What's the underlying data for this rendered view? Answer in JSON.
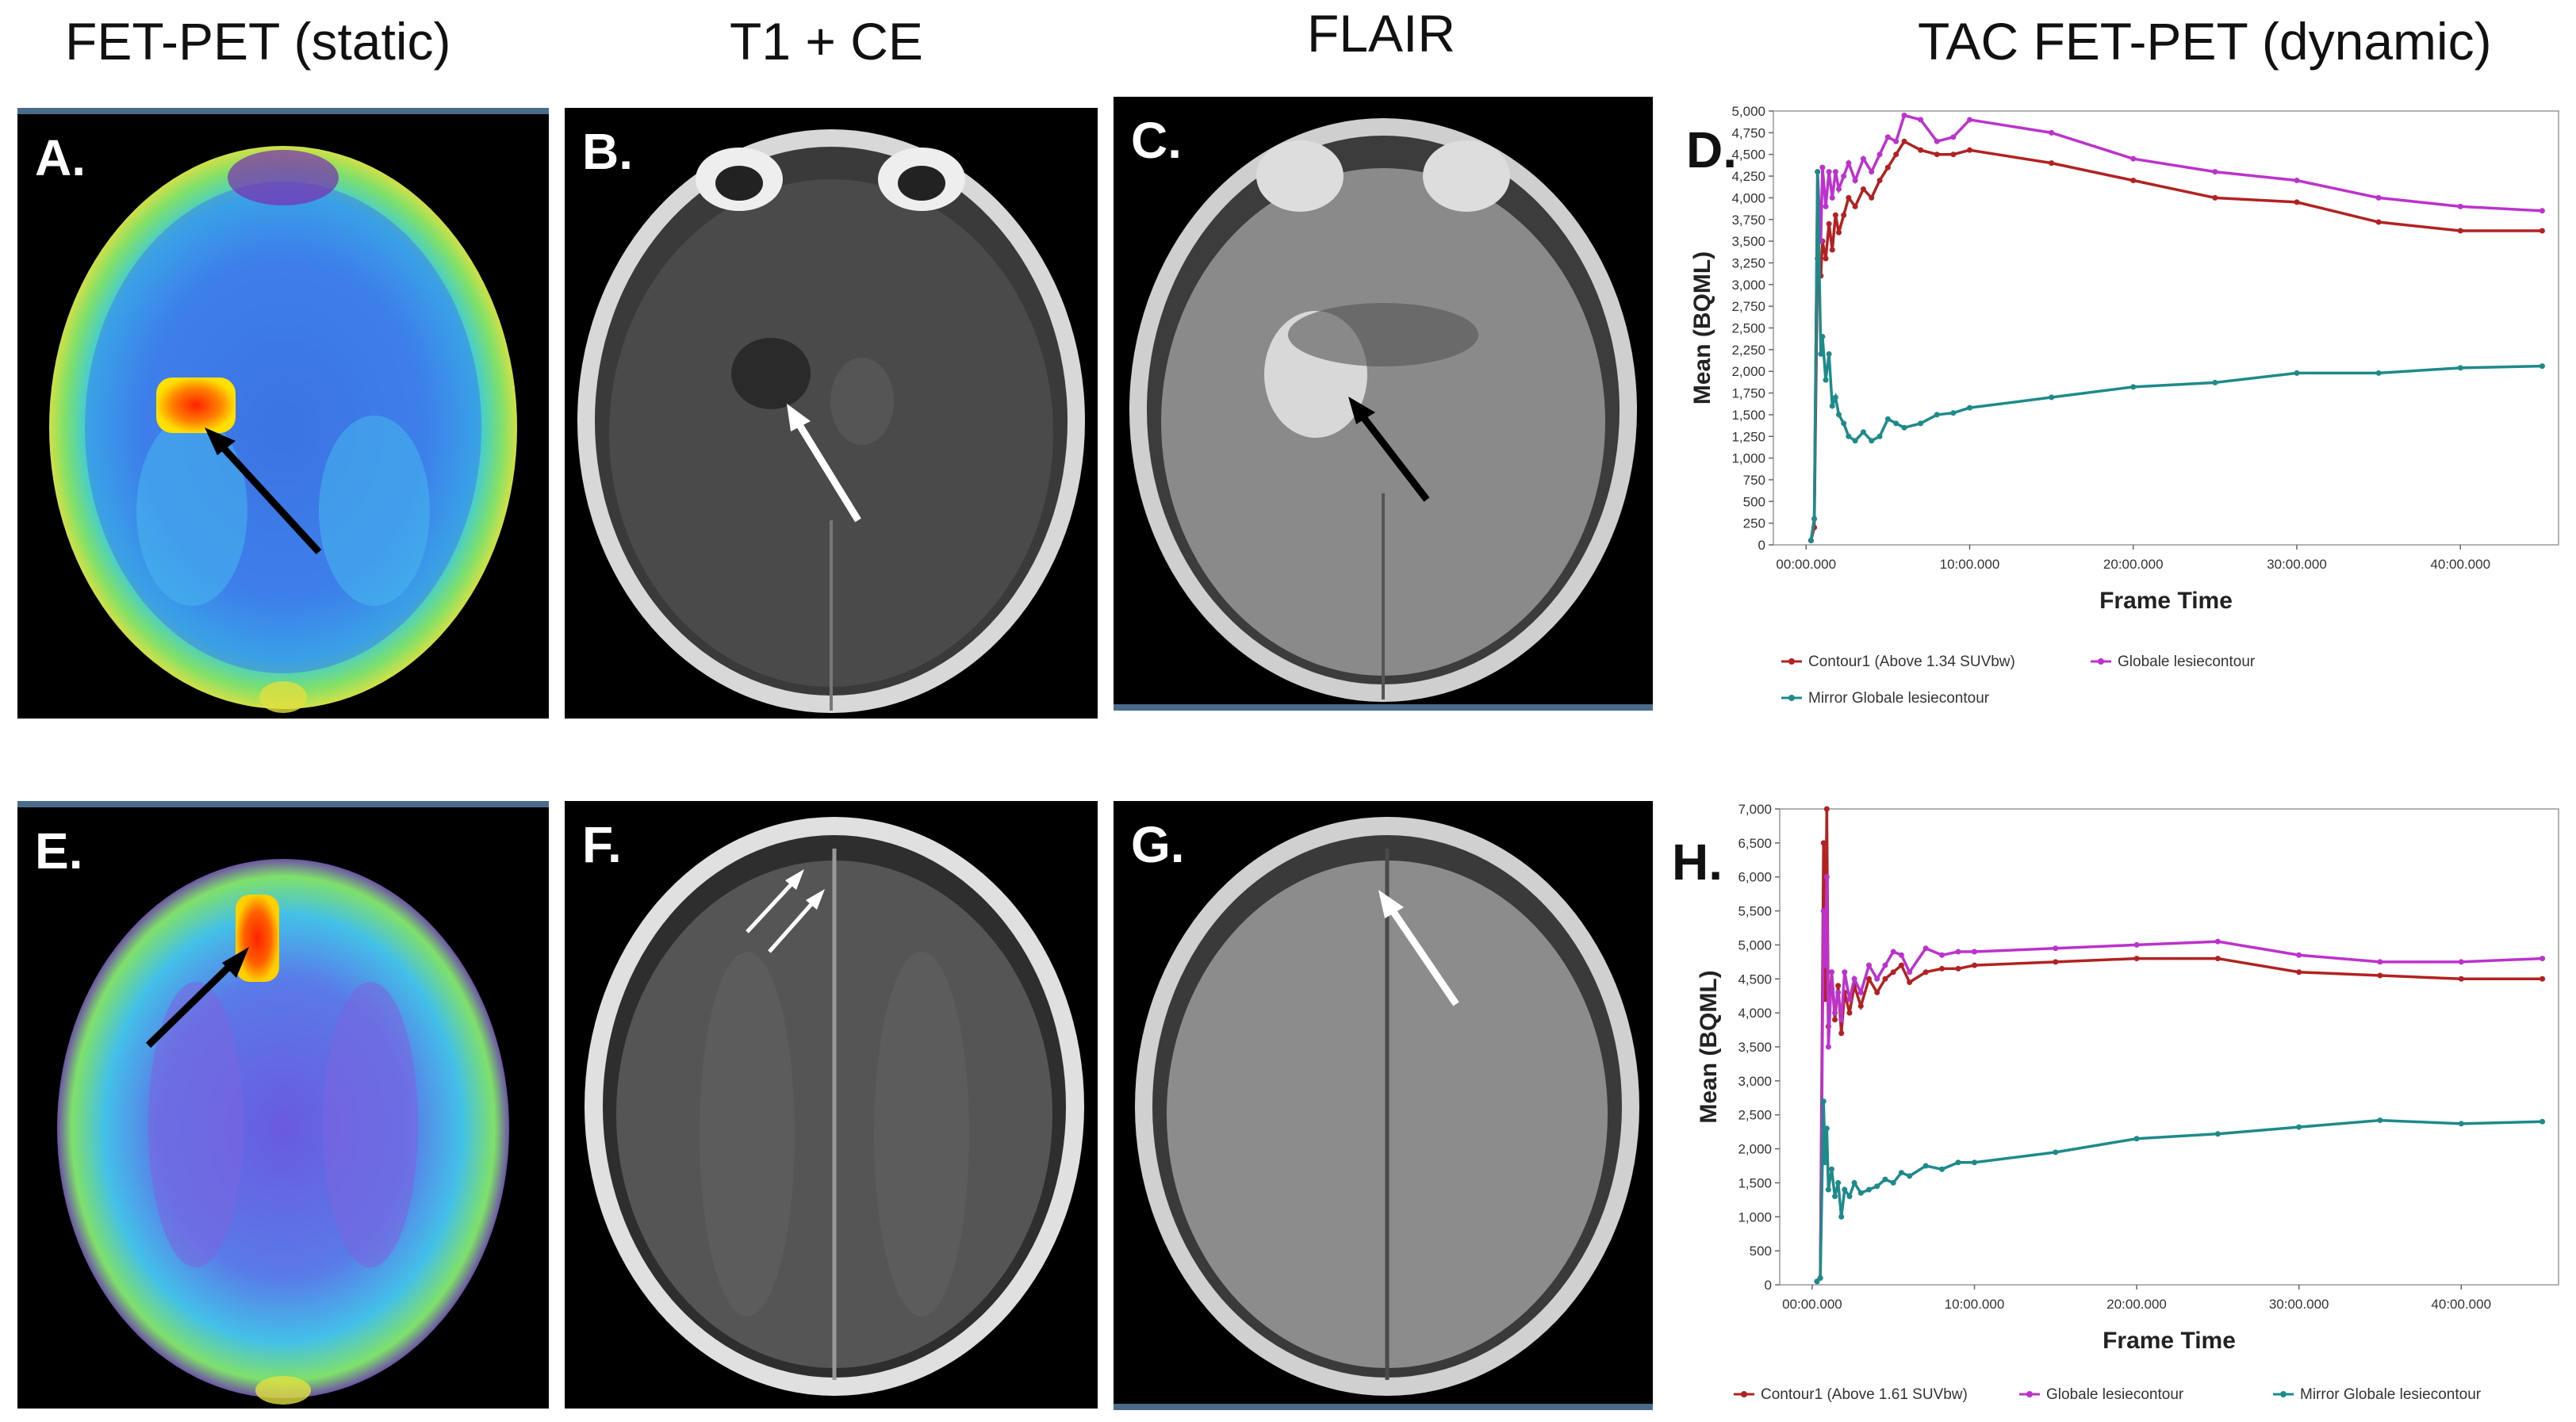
{
  "column_titles": {
    "fet_pet": "FET-PET (static)",
    "t1_ce": "T1 + CE",
    "flair": "FLAIR",
    "tac": "TAC FET-PET (dynamic)"
  },
  "panels": {
    "A": "A.",
    "B": "B.",
    "C": "C.",
    "D": "D.",
    "E": "E.",
    "F": "F.",
    "G": "G.",
    "H": "H."
  },
  "colors": {
    "contour1": "#b22222",
    "globale": "#bb33cc",
    "mirror": "#1f8a8a",
    "arrow_black": "#000000",
    "arrow_white": "#ffffff"
  },
  "chart_data": [
    {
      "type": "line",
      "panel": "D.",
      "xlabel": "Frame Time",
      "ylabel": "Mean (BQML)",
      "x_ticks": [
        "00:00.000",
        "10:00.000",
        "20:00.000",
        "30:00.000",
        "40:00.000"
      ],
      "y_ticks": [
        "0",
        "250",
        "500",
        "750",
        "1,000",
        "1,250",
        "1,500",
        "1,750",
        "2,000",
        "2,250",
        "2,500",
        "2,750",
        "3,000",
        "3,250",
        "3,500",
        "3,750",
        "4,000",
        "4,250",
        "4,500",
        "4,750",
        "5,000"
      ],
      "xlim": [
        -2,
        46
      ],
      "ylim": [
        0,
        5000
      ],
      "x_unit": "minutes",
      "series": [
        {
          "name": "Contour1 (Above 1.34 SUVbw)",
          "color": "#b22222",
          "x": [
            0.3,
            0.5,
            0.7,
            0.9,
            1.0,
            1.2,
            1.4,
            1.6,
            1.8,
            2.0,
            2.3,
            2.6,
            3.0,
            3.5,
            4.0,
            4.5,
            5.0,
            5.5,
            6.0,
            7.0,
            8.0,
            9.0,
            10.0,
            15.0,
            20.0,
            25.0,
            30.0,
            35.0,
            40.0,
            45.0
          ],
          "y": [
            50,
            200,
            3300,
            3100,
            3500,
            3300,
            3700,
            3400,
            3800,
            3600,
            3800,
            4000,
            3900,
            4100,
            4000,
            4200,
            4350,
            4500,
            4650,
            4550,
            4500,
            4500,
            4550,
            4400,
            4200,
            4000,
            3950,
            3720,
            3620,
            3620
          ]
        },
        {
          "name": "Globale lesiecontour",
          "color": "#bb33cc",
          "x": [
            0.3,
            0.5,
            0.7,
            0.9,
            1.0,
            1.2,
            1.4,
            1.6,
            1.8,
            2.0,
            2.3,
            2.6,
            3.0,
            3.5,
            4.0,
            4.5,
            5.0,
            5.5,
            6.0,
            7.0,
            8.0,
            9.0,
            10.0,
            15.0,
            20.0,
            25.0,
            30.0,
            35.0,
            40.0,
            45.0
          ],
          "y": [
            50,
            300,
            4300,
            3500,
            4350,
            3900,
            4300,
            4000,
            4300,
            4100,
            4250,
            4400,
            4200,
            4450,
            4300,
            4500,
            4700,
            4650,
            4950,
            4900,
            4650,
            4700,
            4900,
            4750,
            4450,
            4300,
            4200,
            4000,
            3900,
            3850
          ]
        },
        {
          "name": "Mirror Globale lesiecontour",
          "color": "#1f8a8a",
          "x": [
            0.3,
            0.5,
            0.7,
            0.9,
            1.0,
            1.2,
            1.4,
            1.6,
            1.8,
            2.0,
            2.3,
            2.6,
            3.0,
            3.5,
            4.0,
            4.5,
            5.0,
            5.5,
            6.0,
            7.0,
            8.0,
            9.0,
            10.0,
            15.0,
            20.0,
            25.0,
            30.0,
            35.0,
            40.0,
            45.0
          ],
          "y": [
            50,
            300,
            4300,
            2200,
            2400,
            1900,
            2200,
            1600,
            1700,
            1500,
            1400,
            1250,
            1200,
            1300,
            1200,
            1250,
            1450,
            1400,
            1350,
            1400,
            1500,
            1520,
            1580,
            1700,
            1820,
            1870,
            1980,
            1980,
            2040,
            2060
          ]
        }
      ]
    },
    {
      "type": "line",
      "panel": "H.",
      "xlabel": "Frame Time",
      "ylabel": "Mean (BQML)",
      "x_ticks": [
        "00:00.000",
        "10:00.000",
        "20:00.000",
        "30:00.000",
        "40:00.000"
      ],
      "y_ticks": [
        "0",
        "500",
        "1,000",
        "1,500",
        "2,000",
        "2,500",
        "3,000",
        "3,500",
        "4,000",
        "4,500",
        "5,000",
        "5,500",
        "6,000",
        "6,500",
        "7,000"
      ],
      "xlim": [
        -2,
        46
      ],
      "ylim": [
        0,
        7000
      ],
      "x_unit": "minutes",
      "series": [
        {
          "name": "Contour1 (Above 1.61 SUVbw)",
          "color": "#b22222",
          "x": [
            0.3,
            0.5,
            0.7,
            0.8,
            0.9,
            1.0,
            1.2,
            1.4,
            1.6,
            1.8,
            2.0,
            2.3,
            2.6,
            3.0,
            3.5,
            4.0,
            4.5,
            5.0,
            5.5,
            6.0,
            7.0,
            8.0,
            9.0,
            10.0,
            15.0,
            20.0,
            25.0,
            30.0,
            35.0,
            40.0,
            45.0
          ],
          "y": [
            50,
            100,
            6500,
            4200,
            7000,
            3800,
            4600,
            3900,
            4400,
            3700,
            4300,
            4000,
            4400,
            4100,
            4500,
            4300,
            4500,
            4600,
            4700,
            4450,
            4600,
            4650,
            4650,
            4700,
            4750,
            4800,
            4800,
            4600,
            4550,
            4500,
            4500
          ]
        },
        {
          "name": "Globale lesiecontour",
          "color": "#bb33cc",
          "x": [
            0.3,
            0.5,
            0.7,
            0.8,
            0.9,
            1.0,
            1.2,
            1.4,
            1.6,
            1.8,
            2.0,
            2.3,
            2.6,
            3.0,
            3.5,
            4.0,
            4.5,
            5.0,
            5.5,
            6.0,
            7.0,
            8.0,
            9.0,
            10.0,
            15.0,
            20.0,
            25.0,
            30.0,
            35.0,
            40.0,
            45.0
          ],
          "y": [
            50,
            100,
            5500,
            4700,
            6000,
            3500,
            4600,
            4000,
            4300,
            3900,
            4600,
            4200,
            4500,
            4300,
            4700,
            4500,
            4700,
            4900,
            4850,
            4600,
            4950,
            4850,
            4900,
            4900,
            4950,
            5000,
            5050,
            4850,
            4750,
            4750,
            4800
          ]
        },
        {
          "name": "Mirror Globale lesiecontour",
          "color": "#1f8a8a",
          "x": [
            0.3,
            0.5,
            0.7,
            0.8,
            0.9,
            1.0,
            1.2,
            1.4,
            1.6,
            1.8,
            2.0,
            2.3,
            2.6,
            3.0,
            3.5,
            4.0,
            4.5,
            5.0,
            5.5,
            6.0,
            7.0,
            8.0,
            9.0,
            10.0,
            15.0,
            20.0,
            25.0,
            30.0,
            35.0,
            40.0,
            45.0
          ],
          "y": [
            50,
            100,
            2700,
            1800,
            2300,
            1400,
            1700,
            1300,
            1500,
            1000,
            1400,
            1300,
            1500,
            1350,
            1400,
            1450,
            1550,
            1500,
            1650,
            1600,
            1750,
            1700,
            1800,
            1800,
            1950,
            2150,
            2220,
            2320,
            2420,
            2370,
            2400
          ]
        }
      ]
    }
  ]
}
